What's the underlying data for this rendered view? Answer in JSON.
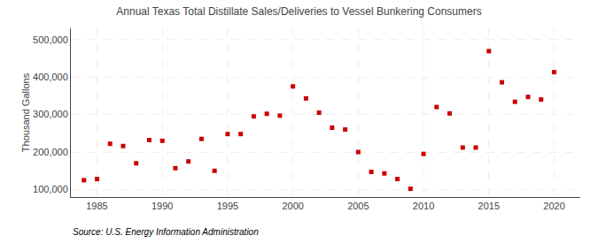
{
  "chart_data": {
    "type": "scatter",
    "title": "Annual Texas Total Distillate Sales/Deliveries to Vessel Bunkering Consumers",
    "ylabel": "Thousand Gallons",
    "annotations": [
      "Source: U.S. Energy Information Administration"
    ],
    "x": [
      1984,
      1985,
      1986,
      1987,
      1988,
      1989,
      1990,
      1991,
      1992,
      1993,
      1994,
      1995,
      1996,
      1997,
      1998,
      1999,
      2000,
      2001,
      2002,
      2003,
      2004,
      2005,
      2006,
      2007,
      2008,
      2009,
      2010,
      2011,
      2012,
      2013,
      2014,
      2015,
      2016,
      2017,
      2018,
      2019,
      2020
    ],
    "values": [
      125000,
      128000,
      222000,
      216000,
      170000,
      232000,
      230000,
      157000,
      175000,
      235000,
      150000,
      248000,
      248000,
      295000,
      302000,
      297000,
      375000,
      343000,
      305000,
      265000,
      260000,
      200000,
      147000,
      143000,
      128000,
      102000,
      195000,
      320000,
      303000,
      212000,
      212000,
      469000,
      386000,
      334000,
      347000,
      340000,
      413000
    ],
    "color": "#cc0000",
    "marker": "square",
    "xlim": [
      1983,
      2022
    ],
    "ylim": [
      80000,
      530000
    ],
    "xticks": [
      1985,
      1990,
      1995,
      2000,
      2005,
      2010,
      2015,
      2020
    ],
    "yticks": [
      {
        "value": 100000,
        "label": "100,000"
      },
      {
        "value": 200000,
        "label": "200,000"
      },
      {
        "value": 300000,
        "label": "300,000"
      },
      {
        "value": 400000,
        "label": "400,000"
      },
      {
        "value": 500000,
        "label": "500,000"
      }
    ],
    "grid": true
  }
}
